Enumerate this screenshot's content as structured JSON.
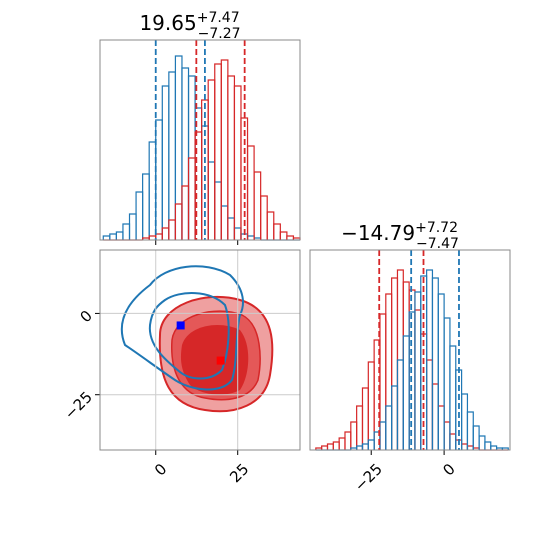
{
  "chart_data": [
    {
      "type": "histogram",
      "title": {
        "value": "19.65",
        "plus": "+7.47",
        "minus": "−7.27"
      },
      "bins": [
        -16,
        -14,
        -12,
        -10,
        -8,
        -6,
        -4,
        -2,
        0,
        2,
        4,
        6,
        8,
        10,
        12,
        14,
        16,
        18,
        20,
        22,
        24,
        26,
        28,
        30,
        32,
        34,
        36,
        38,
        40,
        42,
        44
      ],
      "series": [
        {
          "color": "#1f77b4",
          "values": [
            2,
            3,
            4,
            8,
            13,
            24,
            33,
            49,
            60,
            77,
            84,
            92,
            86,
            82,
            66,
            57,
            39,
            29,
            17,
            11,
            6,
            3,
            2,
            1,
            0,
            0,
            0,
            0,
            0,
            0
          ]
        },
        {
          "color": "#d62728",
          "values": [
            0,
            0,
            0,
            0,
            0,
            0,
            1,
            2,
            3,
            6,
            10,
            18,
            27,
            41,
            54,
            70,
            80,
            88,
            90,
            82,
            77,
            61,
            47,
            34,
            22,
            14,
            8,
            4,
            2,
            1
          ]
        }
      ],
      "dashed_lines": [
        {
          "color": "#1f77b4",
          "value": 0
        },
        {
          "color": "#1f77b4",
          "value": 15
        },
        {
          "color": "#d62728",
          "value": 12.38
        },
        {
          "color": "#d62728",
          "value": 27.12
        }
      ],
      "xlim": [
        -17,
        44
      ],
      "ylim": [
        0,
        100
      ],
      "xticks": [
        0,
        25
      ],
      "show_xtick_labels": false
    },
    {
      "type": "scatter",
      "xlim": [
        -17,
        44
      ],
      "ylim": [
        -42,
        19.5
      ],
      "xticks": [
        0,
        25
      ],
      "yticks": [
        0,
        {
          "value": -25,
          "label": "−25"
        }
      ],
      "grid": true,
      "markers": [
        {
          "color": "#0000ff",
          "x": 7.6,
          "y": -3.7
        },
        {
          "color": "#ff0000",
          "x": 19.8,
          "y": -14.5
        }
      ]
    },
    {
      "type": "histogram",
      "title": {
        "value": "−14.79",
        "plus": "+7.72",
        "minus": "−7.47"
      },
      "bins": [
        -44,
        -42,
        -40,
        -38,
        -36,
        -34,
        -32,
        -30,
        -28,
        -26,
        -24,
        -22,
        -20,
        -18,
        -16,
        -14,
        -12,
        -10,
        -8,
        -6,
        -4,
        -2,
        0,
        2,
        4,
        6,
        8,
        10,
        12,
        14,
        16,
        18,
        20,
        22
      ],
      "series": [
        {
          "color": "#d62728",
          "values": [
            1,
            2,
            3,
            4,
            6,
            9,
            14,
            22,
            31,
            44,
            55,
            68,
            78,
            86,
            90,
            84,
            80,
            70,
            58,
            45,
            33,
            22,
            14,
            8,
            5,
            3,
            2,
            1,
            0,
            0,
            0,
            0,
            0
          ]
        },
        {
          "color": "#1f77b4",
          "values": [
            0,
            0,
            0,
            0,
            0,
            0,
            1,
            2,
            3,
            5,
            9,
            14,
            22,
            32,
            45,
            57,
            69,
            79,
            87,
            90,
            86,
            78,
            66,
            52,
            40,
            28,
            19,
            12,
            7,
            4,
            2,
            1,
            1
          ]
        }
      ],
      "dashed_lines": [
        {
          "color": "#d62728",
          "value": -22.26
        },
        {
          "color": "#d62728",
          "value": -7.07
        },
        {
          "color": "#1f77b4",
          "value": -11.3
        },
        {
          "color": "#1f77b4",
          "value": 5.1
        }
      ],
      "xlim": [
        -46,
        22.6
      ],
      "ylim": [
        0,
        100
      ],
      "xticks": [
        {
          "value": -25,
          "label": "−25"
        },
        0
      ],
      "show_xtick_labels": true
    }
  ]
}
